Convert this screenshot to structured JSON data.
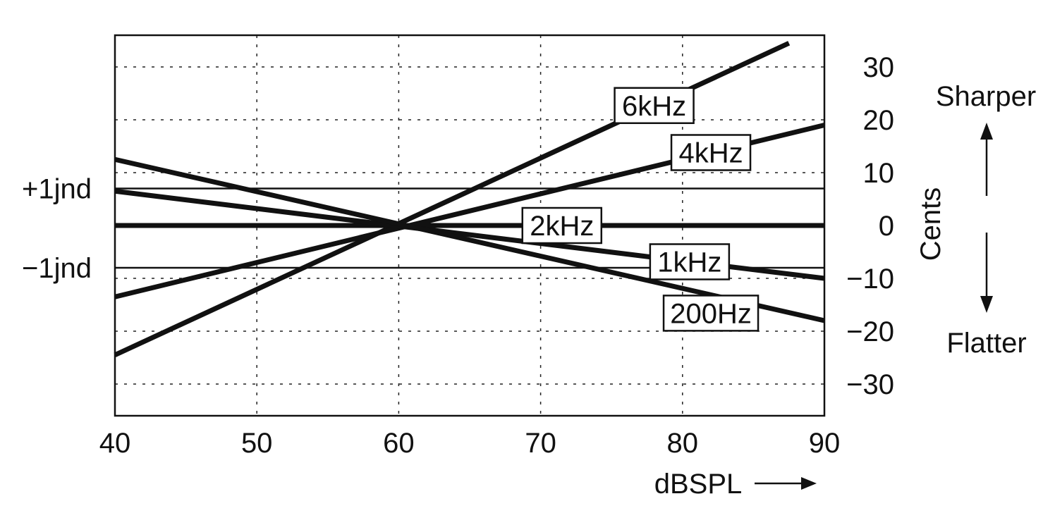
{
  "chart_data": {
    "type": "line",
    "xlabel": "dBSPL",
    "ylabel": "Cents",
    "xlim": [
      40,
      90
    ],
    "ylim": [
      -36,
      36
    ],
    "x_ticks": [
      40,
      50,
      60,
      70,
      80,
      90
    ],
    "x_tick_labels": [
      "40",
      "50",
      "60",
      "70",
      "80",
      "90"
    ],
    "y_ticks": [
      30,
      20,
      10,
      0,
      -10,
      -20,
      -30
    ],
    "y_tick_labels": [
      "30",
      "20",
      "10",
      "0",
      "−10",
      "−20",
      "−30"
    ],
    "grid": true,
    "reference_lines": [
      {
        "label": "+1jnd",
        "y": 7
      },
      {
        "label": "−1jnd",
        "y": -8
      }
    ],
    "direction_labels": {
      "up": "Sharper",
      "down": "Flatter"
    },
    "series": [
      {
        "name": "6kHz",
        "x": [
          40,
          87.5
        ],
        "y": [
          -24.5,
          34.5
        ]
      },
      {
        "name": "4kHz",
        "x": [
          40,
          90
        ],
        "y": [
          -13.5,
          19
        ]
      },
      {
        "name": "2kHz",
        "x": [
          40,
          90
        ],
        "y": [
          0,
          0
        ]
      },
      {
        "name": "1kHz",
        "x": [
          40,
          90
        ],
        "y": [
          6.5,
          -10
        ]
      },
      {
        "name": "200Hz",
        "x": [
          40,
          90
        ],
        "y": [
          12.5,
          -18
        ]
      }
    ]
  }
}
